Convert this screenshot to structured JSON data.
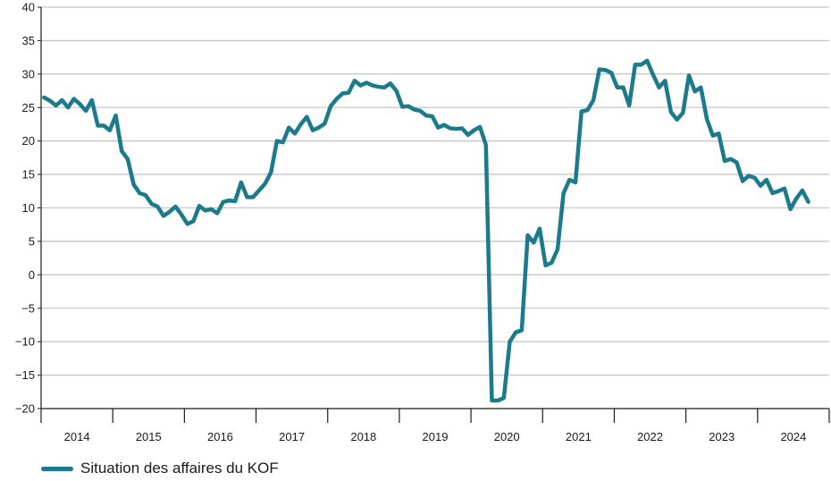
{
  "colors": {
    "line": "#1b7a8c",
    "grid": "#c8c8c8",
    "axis": "#1a1a1a"
  },
  "chart_data": {
    "type": "line",
    "title": "",
    "xlabel": "",
    "ylabel": "",
    "ylim": [
      -20,
      40
    ],
    "yticks": [
      -20,
      -15,
      -10,
      -5,
      0,
      5,
      10,
      15,
      20,
      25,
      30,
      35,
      40
    ],
    "xlim": [
      "2014-01",
      "2024-12"
    ],
    "xtick_labels": [
      "2014",
      "2015",
      "2016",
      "2017",
      "2018",
      "2019",
      "2020",
      "2021",
      "2022",
      "2023",
      "2024"
    ],
    "grid": true,
    "legend_position": "bottom-left",
    "series": [
      {
        "name": "Situation des affaires du KOF",
        "points": [
          [
            "2014-01",
            26.5
          ],
          [
            "2014-02",
            26.0
          ],
          [
            "2014-03",
            25.3
          ],
          [
            "2014-04",
            26.1
          ],
          [
            "2014-05",
            25.0
          ],
          [
            "2014-06",
            26.3
          ],
          [
            "2014-07",
            25.5
          ],
          [
            "2014-08",
            24.5
          ],
          [
            "2014-09",
            26.1
          ],
          [
            "2014-10",
            22.3
          ],
          [
            "2014-11",
            22.3
          ],
          [
            "2014-12",
            21.6
          ],
          [
            "2015-01",
            23.8
          ],
          [
            "2015-02",
            18.5
          ],
          [
            "2015-03",
            17.3
          ],
          [
            "2015-04",
            13.5
          ],
          [
            "2015-05",
            12.2
          ],
          [
            "2015-06",
            11.9
          ],
          [
            "2015-07",
            10.6
          ],
          [
            "2015-08",
            10.2
          ],
          [
            "2015-09",
            8.8
          ],
          [
            "2015-10",
            9.4
          ],
          [
            "2015-11",
            10.2
          ],
          [
            "2015-12",
            9.0
          ],
          [
            "2016-01",
            7.6
          ],
          [
            "2016-02",
            8.0
          ],
          [
            "2016-03",
            10.3
          ],
          [
            "2016-04",
            9.6
          ],
          [
            "2016-05",
            9.8
          ],
          [
            "2016-06",
            9.2
          ],
          [
            "2016-07",
            10.9
          ],
          [
            "2016-08",
            11.1
          ],
          [
            "2016-09",
            11.0
          ],
          [
            "2016-10",
            13.8
          ],
          [
            "2016-11",
            11.6
          ],
          [
            "2016-12",
            11.6
          ],
          [
            "2017-01",
            12.6
          ],
          [
            "2017-02",
            13.6
          ],
          [
            "2017-03",
            15.3
          ],
          [
            "2017-04",
            20.0
          ],
          [
            "2017-05",
            19.8
          ],
          [
            "2017-06",
            22.0
          ],
          [
            "2017-07",
            21.1
          ],
          [
            "2017-08",
            22.5
          ],
          [
            "2017-09",
            23.6
          ],
          [
            "2017-10",
            21.6
          ],
          [
            "2017-11",
            22.0
          ],
          [
            "2017-12",
            22.6
          ],
          [
            "2018-01",
            25.2
          ],
          [
            "2018-02",
            26.3
          ],
          [
            "2018-03",
            27.1
          ],
          [
            "2018-04",
            27.2
          ],
          [
            "2018-05",
            29.0
          ],
          [
            "2018-06",
            28.3
          ],
          [
            "2018-07",
            28.7
          ],
          [
            "2018-08",
            28.3
          ],
          [
            "2018-09",
            28.1
          ],
          [
            "2018-10",
            28.0
          ],
          [
            "2018-11",
            28.6
          ],
          [
            "2018-12",
            27.5
          ],
          [
            "2019-01",
            25.1
          ],
          [
            "2019-02",
            25.2
          ],
          [
            "2019-03",
            24.7
          ],
          [
            "2019-04",
            24.5
          ],
          [
            "2019-05",
            23.8
          ],
          [
            "2019-06",
            23.7
          ],
          [
            "2019-07",
            22.0
          ],
          [
            "2019-08",
            22.4
          ],
          [
            "2019-09",
            21.9
          ],
          [
            "2019-10",
            21.8
          ],
          [
            "2019-11",
            21.9
          ],
          [
            "2019-12",
            20.9
          ],
          [
            "2020-01",
            21.6
          ],
          [
            "2020-02",
            22.1
          ],
          [
            "2020-03",
            19.4
          ],
          [
            "2020-04",
            -18.8
          ],
          [
            "2020-05",
            -18.8
          ],
          [
            "2020-06",
            -18.4
          ],
          [
            "2020-07",
            -10.0
          ],
          [
            "2020-08",
            -8.6
          ],
          [
            "2020-09",
            -8.3
          ],
          [
            "2020-10",
            5.9
          ],
          [
            "2020-11",
            4.8
          ],
          [
            "2020-12",
            6.9
          ],
          [
            "2021-01",
            1.4
          ],
          [
            "2021-02",
            1.8
          ],
          [
            "2021-03",
            3.8
          ],
          [
            "2021-04",
            12.2
          ],
          [
            "2021-05",
            14.2
          ],
          [
            "2021-06",
            13.8
          ],
          [
            "2021-07",
            24.4
          ],
          [
            "2021-08",
            24.6
          ],
          [
            "2021-09",
            26.1
          ],
          [
            "2021-10",
            30.7
          ],
          [
            "2021-11",
            30.6
          ],
          [
            "2021-12",
            30.2
          ],
          [
            "2022-01",
            28.0
          ],
          [
            "2022-02",
            28.0
          ],
          [
            "2022-03",
            25.3
          ],
          [
            "2022-04",
            31.4
          ],
          [
            "2022-05",
            31.4
          ],
          [
            "2022-06",
            32.0
          ],
          [
            "2022-07",
            29.9
          ],
          [
            "2022-08",
            28.0
          ],
          [
            "2022-09",
            29.0
          ],
          [
            "2022-10",
            24.3
          ],
          [
            "2022-11",
            23.2
          ],
          [
            "2022-12",
            24.2
          ],
          [
            "2023-01",
            29.8
          ],
          [
            "2023-02",
            27.4
          ],
          [
            "2023-03",
            28.0
          ],
          [
            "2023-04",
            23.3
          ],
          [
            "2023-05",
            20.8
          ],
          [
            "2023-06",
            21.1
          ],
          [
            "2023-07",
            17.0
          ],
          [
            "2023-08",
            17.3
          ],
          [
            "2023-09",
            16.8
          ],
          [
            "2023-10",
            14.0
          ],
          [
            "2023-11",
            14.8
          ],
          [
            "2023-12",
            14.5
          ],
          [
            "2024-01",
            13.3
          ],
          [
            "2024-02",
            14.2
          ],
          [
            "2024-03",
            12.2
          ],
          [
            "2024-04",
            12.5
          ],
          [
            "2024-05",
            12.9
          ],
          [
            "2024-06",
            9.8
          ],
          [
            "2024-07",
            11.4
          ],
          [
            "2024-08",
            12.6
          ],
          [
            "2024-09",
            10.9
          ]
        ]
      }
    ]
  }
}
